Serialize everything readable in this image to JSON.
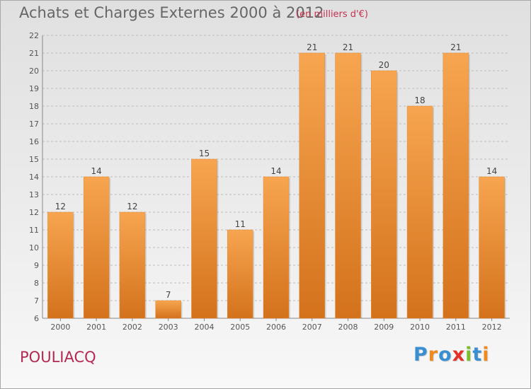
{
  "title": "Achats et Charges Externes 2000 à 2012",
  "unit_note": "(en milliers d'€)",
  "commune": "POULIACQ",
  "logo": {
    "letters": [
      "P",
      "r",
      "o",
      "x",
      "i",
      "t",
      "i"
    ],
    "colors": [
      "#3a8fd0",
      "#f08a1c",
      "#3a8fd0",
      "#e2322a",
      "#7bbd2b",
      "#3a8fd0",
      "#f08a1c"
    ]
  },
  "colors": {
    "bar_top": "#f7a550",
    "bar_bottom": "#d4721c",
    "grid": "#bcbcbc"
  },
  "chart_data": {
    "type": "bar",
    "categories": [
      "2000",
      "2001",
      "2002",
      "2003",
      "2004",
      "2005",
      "2006",
      "2007",
      "2008",
      "2009",
      "2010",
      "2011",
      "2012"
    ],
    "values": [
      12,
      14,
      12,
      7,
      15,
      11,
      14,
      21,
      21,
      20,
      18,
      21,
      14
    ],
    "ylim": [
      6,
      22
    ],
    "yticks": [
      6,
      7,
      8,
      9,
      10,
      11,
      12,
      13,
      14,
      15,
      16,
      17,
      18,
      19,
      20,
      21,
      22
    ],
    "grid": true
  }
}
